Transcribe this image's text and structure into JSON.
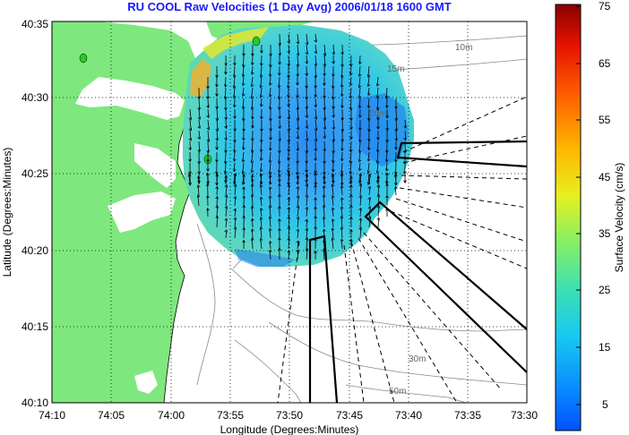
{
  "title": "RU COOL Raw Velocities (1 Day Avg) 2006/01/18 1600 GMT",
  "axes": {
    "xlabel": "Longitude (Degrees:Minutes)",
    "ylabel": "Latitude (Degrees:Minutes)",
    "x_ticks": [
      "74:10",
      "74:05",
      "74:00",
      "73:55",
      "73:50",
      "73:45",
      "73:40",
      "73:35",
      "73:30"
    ],
    "y_ticks": [
      "40:35",
      "40:30",
      "40:25",
      "40:20",
      "40:15",
      "40:10"
    ],
    "grid": "dotted"
  },
  "colorbar": {
    "label": "Surface Velocity (cm/s)",
    "ticks": [
      "75",
      "65",
      "55",
      "45",
      "35",
      "25",
      "15",
      "5"
    ],
    "range": [
      0,
      75
    ]
  },
  "contour_labels": [
    "10m",
    "15m",
    "20m",
    "30m",
    "50m"
  ],
  "colors": {
    "land": "#7ee87e",
    "water": "#ffffff",
    "contour": "#8a8a8a",
    "title": "#1a1aff"
  }
}
